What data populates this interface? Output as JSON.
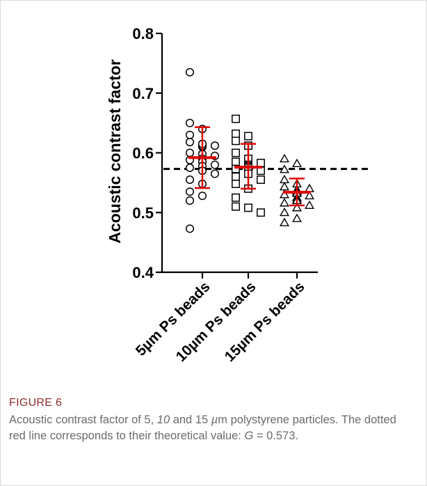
{
  "chart_data": {
    "type": "scatter",
    "title": "",
    "ylabel": "Acoustic contrast factor",
    "xlabel": "",
    "ylim": [
      0.4,
      0.8
    ],
    "yticks": [
      "0.4",
      "0.5",
      "0.6",
      "0.7",
      "0.8"
    ],
    "categories": [
      "5µm Ps beads",
      "10µm Ps beads",
      "15µm Ps beads"
    ],
    "reference_line": {
      "value": 0.573,
      "style": "dashed",
      "color": "#000000"
    },
    "series": [
      {
        "category": "5µm Ps beads",
        "marker": "circle",
        "mean": 0.592,
        "sd_low": 0.541,
        "sd_high": 0.643,
        "values": [
          0.735,
          0.65,
          0.64,
          0.63,
          0.618,
          0.615,
          0.612,
          0.61,
          0.612,
          0.615,
          0.6,
          0.598,
          0.595,
          0.59,
          0.588,
          0.585,
          0.58,
          0.578,
          0.575,
          0.57,
          0.565,
          0.555,
          0.548,
          0.535,
          0.528,
          0.52,
          0.473
        ]
      },
      {
        "category": "10µm Ps beads",
        "marker": "square",
        "mean": 0.576,
        "sd_low": 0.54,
        "sd_high": 0.615,
        "values": [
          0.657,
          0.632,
          0.628,
          0.62,
          0.612,
          0.6,
          0.59,
          0.585,
          0.583,
          0.58,
          0.578,
          0.576,
          0.575,
          0.573,
          0.572,
          0.57,
          0.565,
          0.56,
          0.555,
          0.548,
          0.54,
          0.525,
          0.51,
          0.508,
          0.5
        ]
      },
      {
        "category": "15µm Ps beads",
        "marker": "triangle",
        "mean": 0.534,
        "sd_low": 0.512,
        "sd_high": 0.557,
        "values": [
          0.59,
          0.582,
          0.572,
          0.555,
          0.548,
          0.543,
          0.54,
          0.538,
          0.536,
          0.534,
          0.532,
          0.53,
          0.528,
          0.525,
          0.522,
          0.52,
          0.516,
          0.512,
          0.508,
          0.5,
          0.49,
          0.483
        ]
      }
    ],
    "mean_color": "#e00000"
  },
  "caption": {
    "label": "FIGURE 6",
    "text_part1": "Acoustic contrast factor of 5, ",
    "text_italic": "10",
    "text_part2": " and 15 ",
    "text_unit_italic": "µ",
    "text_part3": "m polystyrene particles. The dotted red line corresponds to their theoretical value: ",
    "text_var_italic": "G",
    "text_part4": " = 0.573."
  }
}
